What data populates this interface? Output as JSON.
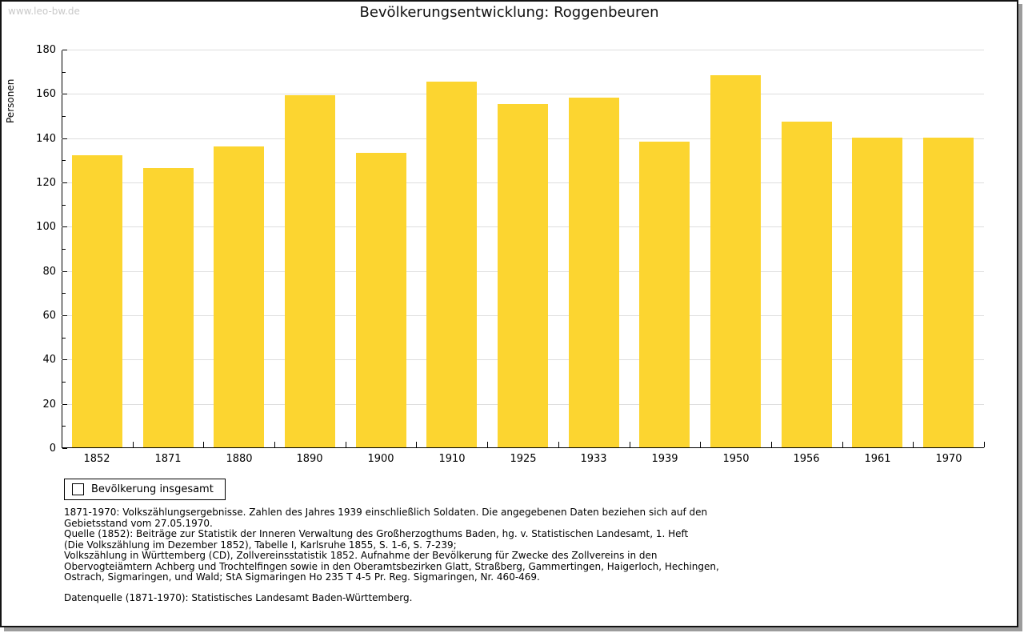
{
  "watermark": "www.leo-bw.de",
  "title": "Bevölkerungsentwicklung: Roggenbeuren",
  "chart_data": {
    "type": "bar",
    "title": "Bevölkerungsentwicklung: Roggenbeuren",
    "categories": [
      "1852",
      "1871",
      "1880",
      "1890",
      "1900",
      "1910",
      "1925",
      "1933",
      "1939",
      "1950",
      "1956",
      "1961",
      "1970"
    ],
    "values": [
      132,
      126,
      136,
      159,
      133,
      165,
      155,
      158,
      138,
      168,
      147,
      140,
      140
    ],
    "series_name": "Bevölkerung insgesamt",
    "xlabel": "",
    "ylabel": "Personen",
    "ylim": [
      0,
      180
    ],
    "ytick_step": 20,
    "yminor_step": 10,
    "grid": true,
    "legend_position": "bottom-left",
    "bar_color": "#fcd530"
  },
  "legend": {
    "label": "Bevölkerung insgesamt"
  },
  "footnotes": {
    "lines": [
      "1871-1970: Volkszählungsergebnisse. Zahlen des Jahres 1939 einschließlich Soldaten. Die angegebenen Daten beziehen sich auf den",
      "Gebietsstand vom 27.05.1970.",
      "Quelle (1852): Beiträge zur Statistik der Inneren Verwaltung des Großherzogthums Baden, hg. v. Statistischen Landesamt, 1. Heft",
      "(Die Volkszählung im Dezember 1852), Tabelle I, Karlsruhe 1855, S. 1-6, S. 7-239;",
      "Volkszählung in Württemberg (CD), Zollvereinsstatistik 1852. Aufnahme der Bevölkerung für Zwecke des Zollvereins in den",
      "Obervogteiämtern Achberg und Trochtelfingen sowie in den Oberamtsbezirken Glatt, Straßberg, Gammertingen, Haigerloch, Hechingen,",
      "Ostrach, Sigmaringen, und Wald; StA Sigmaringen Ho 235 T 4-5 Pr. Reg. Sigmaringen, Nr. 460-469."
    ],
    "datasource": "Datenquelle (1871-1970): Statistisches Landesamt Baden-Württemberg."
  },
  "colors": {
    "bar": "#fcd530",
    "gridline": "#dedede",
    "axis": "#000000",
    "watermark": "#c9c9c9",
    "frame_border": "#131313",
    "frame_shadow": "#9c9c9c"
  }
}
